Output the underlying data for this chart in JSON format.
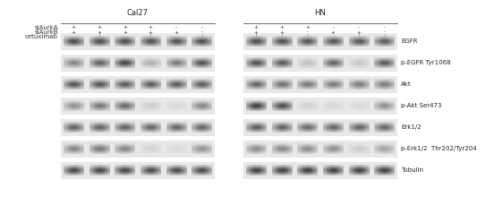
{
  "title_cal27": "Cal27",
  "title_hn": "HN",
  "row_labels": [
    "siAurkA",
    "siAurkB",
    "cetuximab"
  ],
  "band_labels": [
    "EGFR",
    "p-EGFR Tyr1068",
    "Akt",
    "p-Akt Ser473",
    "Erk1/2",
    "p-Erk1/2  Thr202/Tyr204",
    "Tubulin"
  ],
  "cal27_signs": [
    [
      "+",
      "+",
      "+",
      "+",
      "-",
      "-"
    ],
    [
      "+",
      "+",
      "+",
      "+",
      "+",
      "-"
    ],
    [
      "-",
      "+",
      "-",
      "+",
      "-",
      "+"
    ]
  ],
  "hn_signs": [
    [
      "+",
      "+",
      "+",
      "-",
      "-",
      "-"
    ],
    [
      "+",
      "+",
      "-",
      "+",
      "+",
      "-"
    ],
    [
      "+",
      "+",
      "+",
      "-",
      "+",
      "+"
    ]
  ],
  "figure_bg": "#ffffff",
  "text_color": "#333333",
  "font_size": 5.0,
  "label_font_size": 5.0,
  "cal27_bands": [
    [
      0.82,
      0.82,
      0.82,
      0.8,
      0.8,
      0.8
    ],
    [
      0.55,
      0.72,
      0.85,
      0.35,
      0.6,
      0.78
    ],
    [
      0.78,
      0.78,
      0.75,
      0.75,
      0.75,
      0.75
    ],
    [
      0.5,
      0.62,
      0.68,
      0.22,
      0.18,
      0.55
    ],
    [
      0.72,
      0.72,
      0.72,
      0.7,
      0.7,
      0.7
    ],
    [
      0.55,
      0.62,
      0.55,
      0.2,
      0.18,
      0.5
    ],
    [
      0.85,
      0.85,
      0.85,
      0.83,
      0.83,
      0.83
    ]
  ],
  "hn_bands": [
    [
      0.82,
      0.8,
      0.78,
      0.78,
      0.78,
      0.75
    ],
    [
      0.8,
      0.75,
      0.28,
      0.7,
      0.25,
      0.75
    ],
    [
      0.7,
      0.65,
      0.62,
      0.6,
      0.6,
      0.6
    ],
    [
      0.88,
      0.82,
      0.2,
      0.18,
      0.18,
      0.5
    ],
    [
      0.75,
      0.72,
      0.68,
      0.7,
      0.72,
      0.7
    ],
    [
      0.52,
      0.55,
      0.52,
      0.5,
      0.22,
      0.42
    ],
    [
      0.88,
      0.88,
      0.88,
      0.88,
      0.88,
      0.88
    ]
  ]
}
